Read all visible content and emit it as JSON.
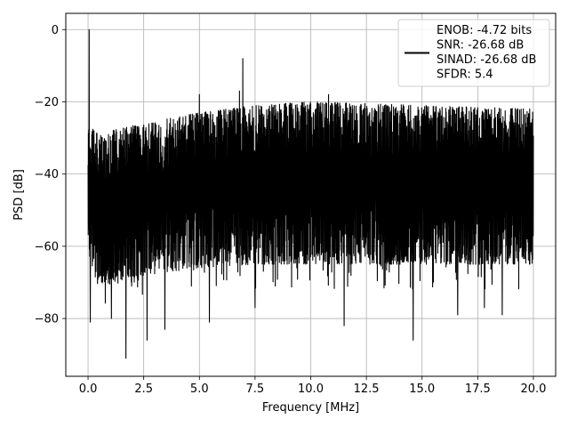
{
  "chart_data": {
    "type": "line",
    "xlabel": "Frequency [MHz]",
    "ylabel": "PSD [dB]",
    "xlim": [
      -1.0,
      21.0
    ],
    "ylim": [
      -96.0,
      4.5
    ],
    "xticks": [
      0.0,
      2.5,
      5.0,
      7.5,
      10.0,
      12.5,
      15.0,
      17.5,
      20.0
    ],
    "xtick_labels": [
      "0.0",
      "2.5",
      "5.0",
      "7.5",
      "10.0",
      "12.5",
      "15.0",
      "17.5",
      "20.0"
    ],
    "yticks": [
      0,
      -20,
      -40,
      -60,
      -80
    ],
    "ytick_labels": [
      "0",
      "−20",
      "−40",
      "−60",
      "−80"
    ],
    "grid": true,
    "legend_position": "upper-right",
    "series": [
      {
        "name": "ENOB: -4.72 bits\nSNR: -26.68 dB\nSINAD: -26.68 dB\nSFDR: 5.4",
        "legend_lines": [
          "ENOB: -4.72 bits",
          "SNR: -26.68 dB",
          "SINAD: -26.68 dB",
          "SFDR: 5.4"
        ],
        "color": "#000000",
        "x_range": [
          0.0,
          20.0
        ],
        "upper_envelope": [
          [
            0.0,
            -26
          ],
          [
            0.5,
            -29
          ],
          [
            1.0,
            -28
          ],
          [
            2.5,
            -26
          ],
          [
            5.0,
            -23
          ],
          [
            7.5,
            -21
          ],
          [
            10.0,
            -20
          ],
          [
            12.5,
            -20.5
          ],
          [
            15.0,
            -21
          ],
          [
            17.5,
            -21.5
          ],
          [
            20.0,
            -22
          ]
        ],
        "lower_envelope": [
          [
            0.0,
            -62
          ],
          [
            0.5,
            -72
          ],
          [
            1.0,
            -70
          ],
          [
            2.5,
            -68
          ],
          [
            5.0,
            -66
          ],
          [
            7.5,
            -65
          ],
          [
            10.0,
            -65
          ],
          [
            12.5,
            -65
          ],
          [
            15.0,
            -65
          ],
          [
            17.5,
            -65
          ],
          [
            20.0,
            -65
          ]
        ],
        "peaks": [
          [
            0.05,
            0.0
          ],
          [
            6.95,
            -8.0
          ],
          [
            6.8,
            -17.0
          ],
          [
            5.0,
            -18.0
          ],
          [
            10.8,
            -18.0
          ]
        ],
        "dips": [
          [
            0.1,
            -81
          ],
          [
            1.05,
            -80
          ],
          [
            1.7,
            -91
          ],
          [
            2.65,
            -86
          ],
          [
            3.45,
            -83
          ],
          [
            5.45,
            -81
          ],
          [
            7.5,
            -77
          ],
          [
            11.5,
            -82
          ],
          [
            14.6,
            -86
          ],
          [
            16.6,
            -79
          ],
          [
            17.8,
            -77
          ],
          [
            18.6,
            -79
          ]
        ]
      }
    ]
  }
}
